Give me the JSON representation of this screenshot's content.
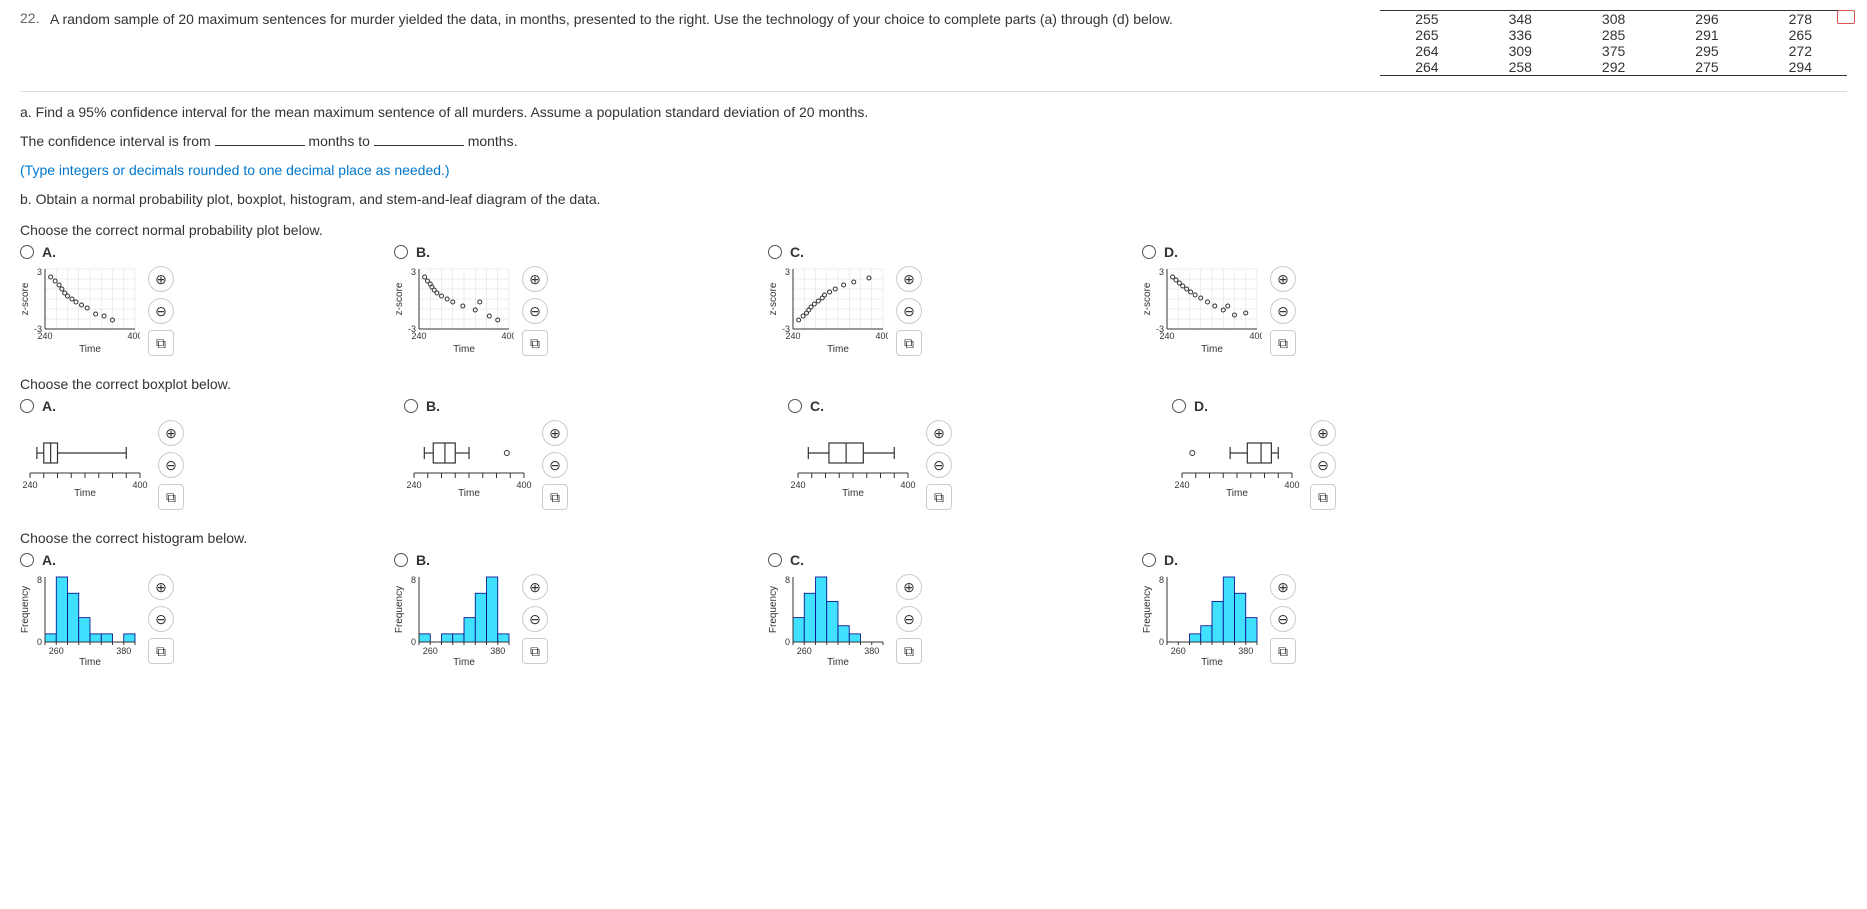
{
  "question_number": "22.",
  "prompt_text": "A random sample of 20 maximum sentences for murder yielded the data, in months, presented to the right. Use the technology of your choice to complete parts (a) through (d) below.",
  "data_table": {
    "rows": [
      [
        "255",
        "348",
        "308",
        "296",
        "278"
      ],
      [
        "265",
        "336",
        "285",
        "291",
        "265"
      ],
      [
        "264",
        "309",
        "375",
        "295",
        "272"
      ],
      [
        "264",
        "258",
        "292",
        "275",
        "294"
      ]
    ]
  },
  "part_a": {
    "text": "a. Find a 95% confidence interval for the mean maximum sentence of all murders. Assume a population standard deviation of 20 months.",
    "sentence_pre": "The confidence interval is from",
    "sentence_mid": "months to",
    "sentence_post": "months.",
    "note": "(Type integers or decimals rounded to one decimal place as needed.)"
  },
  "part_b_text": "b. Obtain a normal probability plot, boxplot, histogram, and stem-and-leaf diagram of the data.",
  "sections": {
    "npp": {
      "title": "Choose the correct normal probability plot below."
    },
    "box": {
      "title": "Choose the correct boxplot below."
    },
    "hist": {
      "title": "Choose the correct histogram below."
    }
  },
  "opt_labels": [
    "A.",
    "B.",
    "C.",
    "D."
  ],
  "axis": {
    "time": "Time",
    "z": "z-score",
    "freq": "Frequency"
  },
  "npp_axis": {
    "xmin": 240,
    "xmax": 400,
    "ymin": -3,
    "ymax": 3,
    "xt0": "240",
    "xt1": "400",
    "yt0": "-3",
    "yt1": "3"
  },
  "npp_plots": {
    "A": {
      "pts": [
        [
          250,
          2.2
        ],
        [
          258,
          1.8
        ],
        [
          265,
          1.4
        ],
        [
          270,
          1.0
        ],
        [
          275,
          0.6
        ],
        [
          280,
          0.3
        ],
        [
          288,
          0.0
        ],
        [
          295,
          -0.3
        ],
        [
          305,
          -0.6
        ],
        [
          315,
          -0.9
        ],
        [
          330,
          -1.5
        ],
        [
          345,
          -1.7
        ],
        [
          360,
          -2.1
        ]
      ]
    },
    "B": {
      "pts": [
        [
          250,
          2.2
        ],
        [
          255,
          1.8
        ],
        [
          260,
          1.5
        ],
        [
          263,
          1.2
        ],
        [
          267,
          0.9
        ],
        [
          272,
          0.6
        ],
        [
          280,
          0.3
        ],
        [
          290,
          0.0
        ],
        [
          300,
          -0.3
        ],
        [
          318,
          -0.7
        ],
        [
          340,
          -1.1
        ],
        [
          348,
          -0.3
        ],
        [
          365,
          -1.7
        ],
        [
          380,
          -2.1
        ]
      ]
    },
    "C": {
      "pts": [
        [
          250,
          -2.1
        ],
        [
          258,
          -1.7
        ],
        [
          264,
          -1.4
        ],
        [
          268,
          -1.1
        ],
        [
          272,
          -0.8
        ],
        [
          278,
          -0.5
        ],
        [
          285,
          -0.2
        ],
        [
          292,
          0.1
        ],
        [
          296,
          0.4
        ],
        [
          305,
          0.7
        ],
        [
          315,
          1.0
        ],
        [
          330,
          1.4
        ],
        [
          348,
          1.7
        ],
        [
          375,
          2.1
        ]
      ]
    },
    "D": {
      "pts": [
        [
          250,
          2.2
        ],
        [
          256,
          1.9
        ],
        [
          262,
          1.6
        ],
        [
          268,
          1.3
        ],
        [
          275,
          1.0
        ],
        [
          282,
          0.7
        ],
        [
          290,
          0.4
        ],
        [
          300,
          0.1
        ],
        [
          312,
          -0.3
        ],
        [
          325,
          -0.7
        ],
        [
          340,
          -1.1
        ],
        [
          348,
          -0.7
        ],
        [
          360,
          -1.6
        ],
        [
          380,
          -1.4
        ]
      ]
    }
  },
  "box_axis": {
    "xmin": 240,
    "xmax": 400,
    "xt0": "240",
    "xt1": "400"
  },
  "box_plots": {
    "A": {
      "whisk_lo": 250,
      "q1": 260,
      "med": 270,
      "q3": 280,
      "whisk_hi": 380,
      "outliers": []
    },
    "B": {
      "whisk_lo": 255,
      "q1": 268,
      "med": 285,
      "q3": 300,
      "whisk_hi": 320,
      "outliers": [
        375
      ]
    },
    "C": {
      "whisk_lo": 255,
      "q1": 285,
      "med": 310,
      "q3": 335,
      "whisk_hi": 380,
      "outliers": []
    },
    "D": {
      "whisk_lo": 310,
      "q1": 335,
      "med": 355,
      "q3": 370,
      "whisk_hi": 380,
      "outliers": [
        255
      ]
    }
  },
  "hist_axis": {
    "xmin": 240,
    "xmax": 400,
    "ymin": 0,
    "ymax": 8,
    "xt0": "260",
    "xt1": "380",
    "yt0": "0",
    "yt1": "8"
  },
  "hist_plots": {
    "A": {
      "bins": [
        240,
        260,
        280,
        300,
        320,
        340,
        360,
        380,
        400
      ],
      "freq": [
        1,
        8,
        6,
        3,
        1,
        1,
        0,
        1
      ]
    },
    "B": {
      "bins": [
        240,
        260,
        280,
        300,
        320,
        340,
        360,
        380,
        400
      ],
      "freq": [
        1,
        0,
        1,
        1,
        3,
        6,
        8,
        1
      ]
    },
    "C": {
      "bins": [
        240,
        260,
        280,
        300,
        320,
        340,
        360,
        380,
        400
      ],
      "freq": [
        3,
        6,
        8,
        5,
        2,
        1,
        0,
        0
      ]
    },
    "D": {
      "bins": [
        240,
        260,
        280,
        300,
        320,
        340,
        360,
        380,
        400
      ],
      "freq": [
        0,
        0,
        1,
        2,
        5,
        8,
        6,
        3
      ]
    }
  },
  "tool_icons": {
    "zoom_in": "⊕",
    "zoom_out": "⊖",
    "popup": "⧉"
  },
  "colors": {
    "bar_fill": "#40e0ff",
    "bar_stroke": "#0060a0",
    "grid": "#ddd",
    "axis": "#333",
    "link": "#0077cc"
  }
}
